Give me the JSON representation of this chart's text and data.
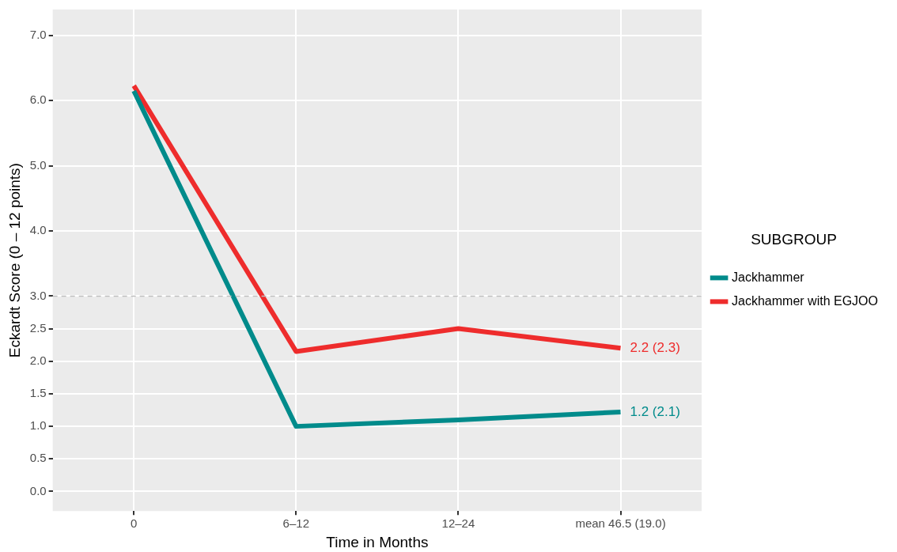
{
  "chart_data": {
    "type": "line",
    "xlabel": "Time in Months",
    "ylabel": "Eckardt Score (0 – 12 points)",
    "legend_title": "SUBGROUP",
    "categories": [
      "0",
      "6–12",
      "12–24",
      "mean 46.5 (19.0)"
    ],
    "series": [
      {
        "name": "Jackhammer",
        "color": "#008b8b",
        "values": [
          6.15,
          1.0,
          1.1,
          1.22
        ]
      },
      {
        "name": "Jackhammer with EGJOO",
        "color": "#ee2c2c",
        "values": [
          6.23,
          2.15,
          2.5,
          2.2
        ]
      }
    ],
    "ylim": [
      -0.3,
      7.4
    ],
    "yticks": [
      {
        "value": 0,
        "label": "0.0"
      },
      0.5,
      {
        "value": 1,
        "label": "1.0"
      },
      1.5,
      {
        "value": 2,
        "label": "2.0"
      },
      2.5,
      {
        "value": 3,
        "label": "3.0"
      },
      {
        "value": 4,
        "label": "4.0"
      },
      {
        "value": 5,
        "label": "5.0"
      },
      {
        "value": 6,
        "label": "6.0"
      },
      {
        "value": 7,
        "label": "7.0"
      }
    ],
    "ref_lines": [
      {
        "axis": "y",
        "value": 3,
        "color": "#bebebe",
        "line_style": "dashed"
      }
    ],
    "annotations": [
      {
        "text": "2.2 (2.3)",
        "x": "mean 46.5 (19.0)",
        "y": 2.2
      },
      {
        "text": "1.2 (2.1)",
        "x": "mean 46.5 (19.0)",
        "y": 1.22
      }
    ],
    "grid": true,
    "legend": "right",
    "marker": "none",
    "line_style": "solid"
  }
}
